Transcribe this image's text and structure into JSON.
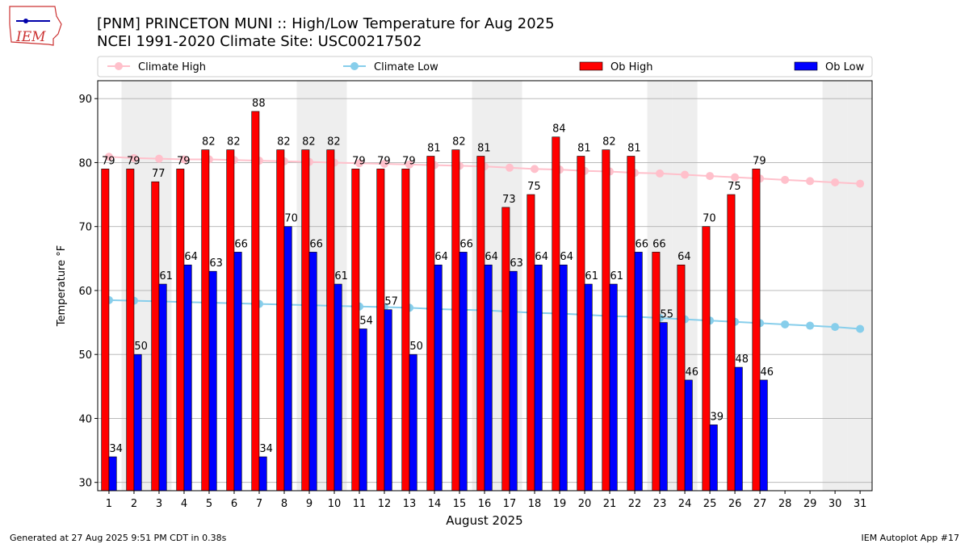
{
  "chart_data": {
    "type": "bar",
    "title": "[PNM] PRINCETON MUNI :: High/Low Temperature for Aug 2025",
    "subtitle": "NCEI 1991-2020 Climate Site: USC00217502",
    "x_label": "August 2025",
    "y_label": "Temperature °F",
    "footer_left": "Generated at 27 Aug 2025 9:51 PM CDT in 0.38s",
    "footer_right": "IEM Autoplot App #17",
    "logo_text": "IEM",
    "x": [
      1,
      2,
      3,
      4,
      5,
      6,
      7,
      8,
      9,
      10,
      11,
      12,
      13,
      14,
      15,
      16,
      17,
      18,
      19,
      20,
      21,
      22,
      23,
      24,
      25,
      26,
      27,
      28,
      29,
      30,
      31
    ],
    "xticks": [
      1,
      2,
      3,
      4,
      5,
      6,
      7,
      8,
      9,
      10,
      11,
      12,
      13,
      14,
      15,
      16,
      17,
      18,
      19,
      20,
      21,
      22,
      23,
      24,
      25,
      26,
      27,
      28,
      29,
      30,
      31
    ],
    "xlim": [
      0.55,
      31.48
    ],
    "ylim": [
      28.7,
      92.8
    ],
    "yticks": [
      30,
      40,
      50,
      60,
      70,
      80,
      90
    ],
    "grid": true,
    "legend": "top",
    "shaded_days": [
      2,
      3,
      9,
      10,
      16,
      17,
      23,
      24,
      30,
      31
    ],
    "shade_color": "#eeeeee",
    "series": [
      {
        "name": "Climate High",
        "type": "line",
        "color": "#ffc0cb",
        "values": [
          80.9,
          80.7,
          80.6,
          80.5,
          80.5,
          80.4,
          80.3,
          80.2,
          80.1,
          80.0,
          79.9,
          79.8,
          79.7,
          79.6,
          79.5,
          79.4,
          79.2,
          79.0,
          78.9,
          78.7,
          78.6,
          78.4,
          78.3,
          78.1,
          77.9,
          77.7,
          77.5,
          77.3,
          77.1,
          76.9,
          76.7
        ]
      },
      {
        "name": "Climate Low",
        "type": "line",
        "color": "#87ceeb",
        "values": [
          58.5,
          58.4,
          58.3,
          58.2,
          58.1,
          58.0,
          57.9,
          57.8,
          57.7,
          57.6,
          57.5,
          57.4,
          57.3,
          57.1,
          57.0,
          56.9,
          56.7,
          56.5,
          56.4,
          56.2,
          56.0,
          55.9,
          55.7,
          55.5,
          55.3,
          55.1,
          54.9,
          54.7,
          54.5,
          54.3,
          54.0
        ]
      },
      {
        "name": "Ob High",
        "type": "bar",
        "color": "#ff0000",
        "offset": -0.15,
        "values": [
          79,
          79,
          77,
          79,
          82,
          82,
          88,
          82,
          82,
          82,
          79,
          79,
          79,
          81,
          82,
          81,
          73,
          75,
          84,
          81,
          82,
          81,
          66,
          64,
          70,
          75,
          79,
          null,
          null,
          null,
          null
        ]
      },
      {
        "name": "Ob Low",
        "type": "bar",
        "color": "#0000ff",
        "offset": 0.15,
        "values": [
          34,
          50,
          61,
          64,
          63,
          66,
          34,
          70,
          66,
          61,
          54,
          57,
          50,
          64,
          66,
          64,
          63,
          64,
          64,
          61,
          61,
          66,
          55,
          46,
          39,
          48,
          46,
          null,
          null,
          null,
          null
        ]
      }
    ]
  }
}
